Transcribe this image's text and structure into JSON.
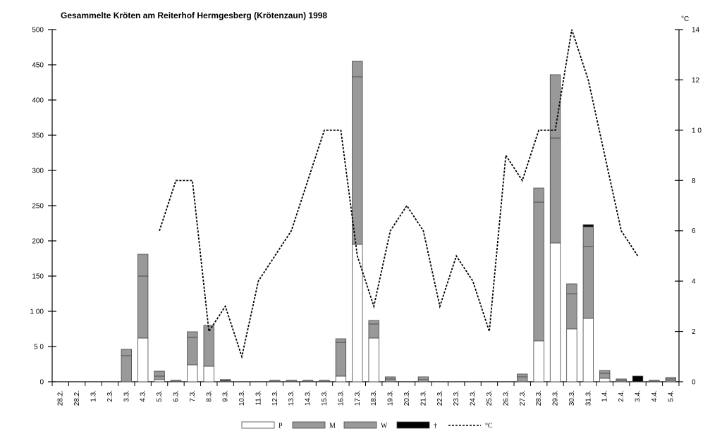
{
  "chart_data": {
    "type": "bar",
    "title": "Gesammelte Kröten am Reiterhof Hermgesberg (Krötenzaun) 1998",
    "y_right_unit": "°C",
    "ylim_left": [
      0,
      500
    ],
    "left_ticks": [
      "0",
      "5 0",
      "1 00",
      "150",
      "200",
      "250",
      "300",
      "350",
      "400",
      "450",
      "500"
    ],
    "ylim_right": [
      0,
      14
    ],
    "right_ticks": [
      "0",
      "2",
      "4",
      "6",
      "8",
      "1 0",
      "12",
      "14"
    ],
    "grid": false,
    "stacked": true,
    "categories": [
      "28.2.",
      "28.2.",
      "1.3.",
      "2.3.",
      "3.3.",
      "4.3.",
      "5.3.",
      "6.3.",
      "7.3.",
      "8.3.",
      "9.3.",
      "10.3.",
      "11.3.",
      "12.3.",
      "13.3.",
      "14.3.",
      "15.3.",
      "16.3.",
      "17.3.",
      "18.3.",
      "19.3.",
      "20.3.",
      "21.3.",
      "22.3.",
      "23.3.",
      "24.3.",
      "25.3.",
      "26.3.",
      "27.3.",
      "28.3.",
      "29.3.",
      "30.3.",
      "31.3.",
      "1.4.",
      "2.4.",
      "3.4.",
      "4.4.",
      "5.4."
    ],
    "series": [
      {
        "name": "P",
        "kind": "bar",
        "color": "#ffffff",
        "values": [
          0,
          0,
          0,
          0,
          0,
          62,
          3,
          0,
          24,
          22,
          0,
          0,
          0,
          0,
          0,
          0,
          0,
          8,
          195,
          62,
          0,
          0,
          0,
          0,
          0,
          0,
          0,
          0,
          0,
          58,
          197,
          75,
          90,
          5,
          0,
          0,
          0,
          1
        ]
      },
      {
        "name": "M",
        "kind": "bar",
        "color": "#999999",
        "values": [
          0,
          0,
          0,
          0,
          37,
          88,
          5,
          1,
          39,
          0,
          1,
          0,
          0,
          1,
          1,
          1,
          1,
          48,
          238,
          20,
          4,
          0,
          3,
          0,
          0,
          0,
          0,
          0,
          7,
          197,
          149,
          50,
          102,
          7,
          2,
          0,
          1,
          3
        ]
      },
      {
        "name": "W",
        "kind": "bar",
        "color": "#999999",
        "values": [
          0,
          0,
          0,
          0,
          9,
          31,
          7,
          1,
          8,
          58,
          1,
          0,
          0,
          1,
          1,
          1,
          1,
          5,
          22,
          5,
          3,
          0,
          4,
          0,
          0,
          0,
          0,
          0,
          4,
          20,
          90,
          14,
          28,
          4,
          2,
          0,
          1,
          2
        ]
      },
      {
        "name": "†",
        "kind": "bar",
        "color": "#000000",
        "values": [
          0,
          0,
          0,
          0,
          0,
          0,
          0,
          0,
          0,
          0,
          1,
          0,
          0,
          0,
          0,
          0,
          0,
          0,
          0,
          0,
          0,
          0,
          0,
          0,
          0,
          0,
          0,
          0,
          0,
          0,
          0,
          0,
          3,
          0,
          0,
          8,
          0,
          0
        ]
      },
      {
        "name": "°C",
        "kind": "line",
        "axis": "right",
        "style": "dashed",
        "color": "#000000",
        "values": [
          null,
          null,
          null,
          null,
          null,
          null,
          6,
          8,
          8,
          2,
          3,
          1,
          4,
          5,
          6,
          8,
          10,
          10,
          5,
          3,
          6,
          7,
          6,
          3,
          5,
          4,
          2,
          9,
          8,
          10,
          10,
          14,
          12,
          9,
          6,
          5,
          null,
          null
        ]
      }
    ],
    "legend": {
      "position": "bottom-center",
      "items": [
        "P",
        "M",
        "W",
        "†",
        "°C"
      ]
    }
  }
}
